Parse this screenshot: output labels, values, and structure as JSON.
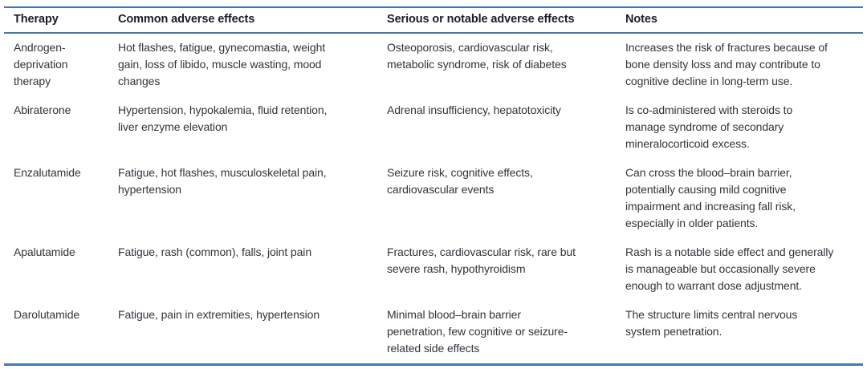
{
  "colors": {
    "rule_blue": "#4678af",
    "header_text": "#1b1c28",
    "body_text": "#33343d",
    "background": "#ffffff"
  },
  "table": {
    "columns": [
      {
        "label": "Therapy"
      },
      {
        "label": "Common adverse effects"
      },
      {
        "label": "Serious or notable adverse effects"
      },
      {
        "label": "Notes"
      }
    ],
    "rows": [
      {
        "therapy": "Androgen-\ndeprivation\ntherapy",
        "common": "Hot flashes, fatigue, gynecomastia, weight\ngain, loss of libido, muscle wasting, mood\nchanges",
        "serious": "Osteoporosis, cardiovascular risk,\nmetabolic syndrome, risk of diabetes",
        "notes": "Increases the risk of fractures because of\nbone density loss and may contribute to\ncognitive decline in long-term use."
      },
      {
        "therapy": "Abiraterone",
        "common": "Hypertension, hypokalemia, fluid retention,\nliver enzyme elevation",
        "serious": "Adrenal insufficiency, hepatotoxicity",
        "notes": "Is co-administered with steroids to\nmanage syndrome of secondary\nmineralocorticoid excess."
      },
      {
        "therapy": "Enzalutamide",
        "common": "Fatigue, hot flashes, musculoskeletal pain,\nhypertension",
        "serious": "Seizure risk, cognitive effects,\ncardiovascular events",
        "notes": "Can cross the blood–brain barrier,\npotentially causing mild cognitive\nimpairment and increasing fall risk,\nespecially in older patients."
      },
      {
        "therapy": "Apalutamide",
        "common": "Fatigue, rash (common), falls, joint pain",
        "serious": "Fractures, cardiovascular risk, rare but\nsevere rash, hypothyroidism",
        "notes": "Rash is a notable side effect and generally\nis manageable but occasionally severe\nenough to warrant dose adjustment."
      },
      {
        "therapy": "Darolutamide",
        "common": "Fatigue, pain in extremities, hypertension",
        "serious": "Minimal blood–brain barrier\npenetration, few cognitive or seizure-\nrelated side effects",
        "notes": "The structure limits central nervous\nsystem penetration."
      }
    ]
  }
}
